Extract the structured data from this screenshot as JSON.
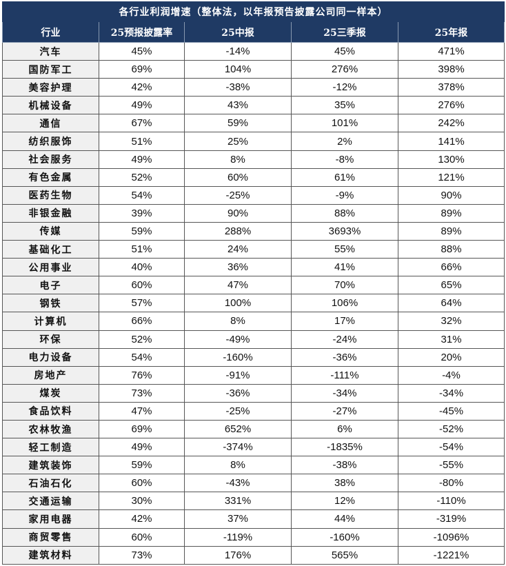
{
  "table": {
    "title": "各行业利润增速（整体法，以年报预告披露公司同一样本）",
    "columns": [
      "行业",
      "25预报披露率",
      "25中报",
      "25三季报",
      "25年报"
    ],
    "rows": [
      [
        "汽车",
        "45%",
        "-14%",
        "45%",
        "471%"
      ],
      [
        "国防军工",
        "69%",
        "104%",
        "276%",
        "398%"
      ],
      [
        "美容护理",
        "42%",
        "-38%",
        "-12%",
        "378%"
      ],
      [
        "机械设备",
        "49%",
        "43%",
        "35%",
        "276%"
      ],
      [
        "通信",
        "67%",
        "59%",
        "101%",
        "242%"
      ],
      [
        "纺织服饰",
        "51%",
        "25%",
        "2%",
        "141%"
      ],
      [
        "社会服务",
        "49%",
        "8%",
        "-8%",
        "130%"
      ],
      [
        "有色金属",
        "52%",
        "60%",
        "61%",
        "121%"
      ],
      [
        "医药生物",
        "54%",
        "-25%",
        "-9%",
        "90%"
      ],
      [
        "非银金融",
        "39%",
        "90%",
        "88%",
        "89%"
      ],
      [
        "传媒",
        "59%",
        "288%",
        "3693%",
        "89%"
      ],
      [
        "基础化工",
        "51%",
        "24%",
        "55%",
        "88%"
      ],
      [
        "公用事业",
        "40%",
        "36%",
        "41%",
        "66%"
      ],
      [
        "电子",
        "60%",
        "47%",
        "70%",
        "65%"
      ],
      [
        "钢铁",
        "57%",
        "100%",
        "106%",
        "64%"
      ],
      [
        "计算机",
        "66%",
        "8%",
        "17%",
        "32%"
      ],
      [
        "环保",
        "52%",
        "-49%",
        "-24%",
        "31%"
      ],
      [
        "电力设备",
        "54%",
        "-160%",
        "-36%",
        "20%"
      ],
      [
        "房地产",
        "76%",
        "-91%",
        "-111%",
        "-4%"
      ],
      [
        "煤炭",
        "73%",
        "-36%",
        "-34%",
        "-34%"
      ],
      [
        "食品饮料",
        "47%",
        "-25%",
        "-27%",
        "-45%"
      ],
      [
        "农林牧渔",
        "69%",
        "652%",
        "6%",
        "-52%"
      ],
      [
        "轻工制造",
        "49%",
        "-374%",
        "-1835%",
        "-54%"
      ],
      [
        "建筑装饰",
        "59%",
        "8%",
        "-38%",
        "-55%"
      ],
      [
        "石油石化",
        "60%",
        "-43%",
        "38%",
        "-80%"
      ],
      [
        "交通运输",
        "30%",
        "331%",
        "12%",
        "-110%"
      ],
      [
        "家用电器",
        "42%",
        "37%",
        "44%",
        "-319%"
      ],
      [
        "商贸零售",
        "60%",
        "-119%",
        "-160%",
        "-1096%"
      ],
      [
        "建筑材料",
        "73%",
        "176%",
        "565%",
        "-1221%"
      ]
    ]
  },
  "colors": {
    "header_bg": "#1f3a64",
    "industry_col_bg": "#f0f0f0"
  }
}
